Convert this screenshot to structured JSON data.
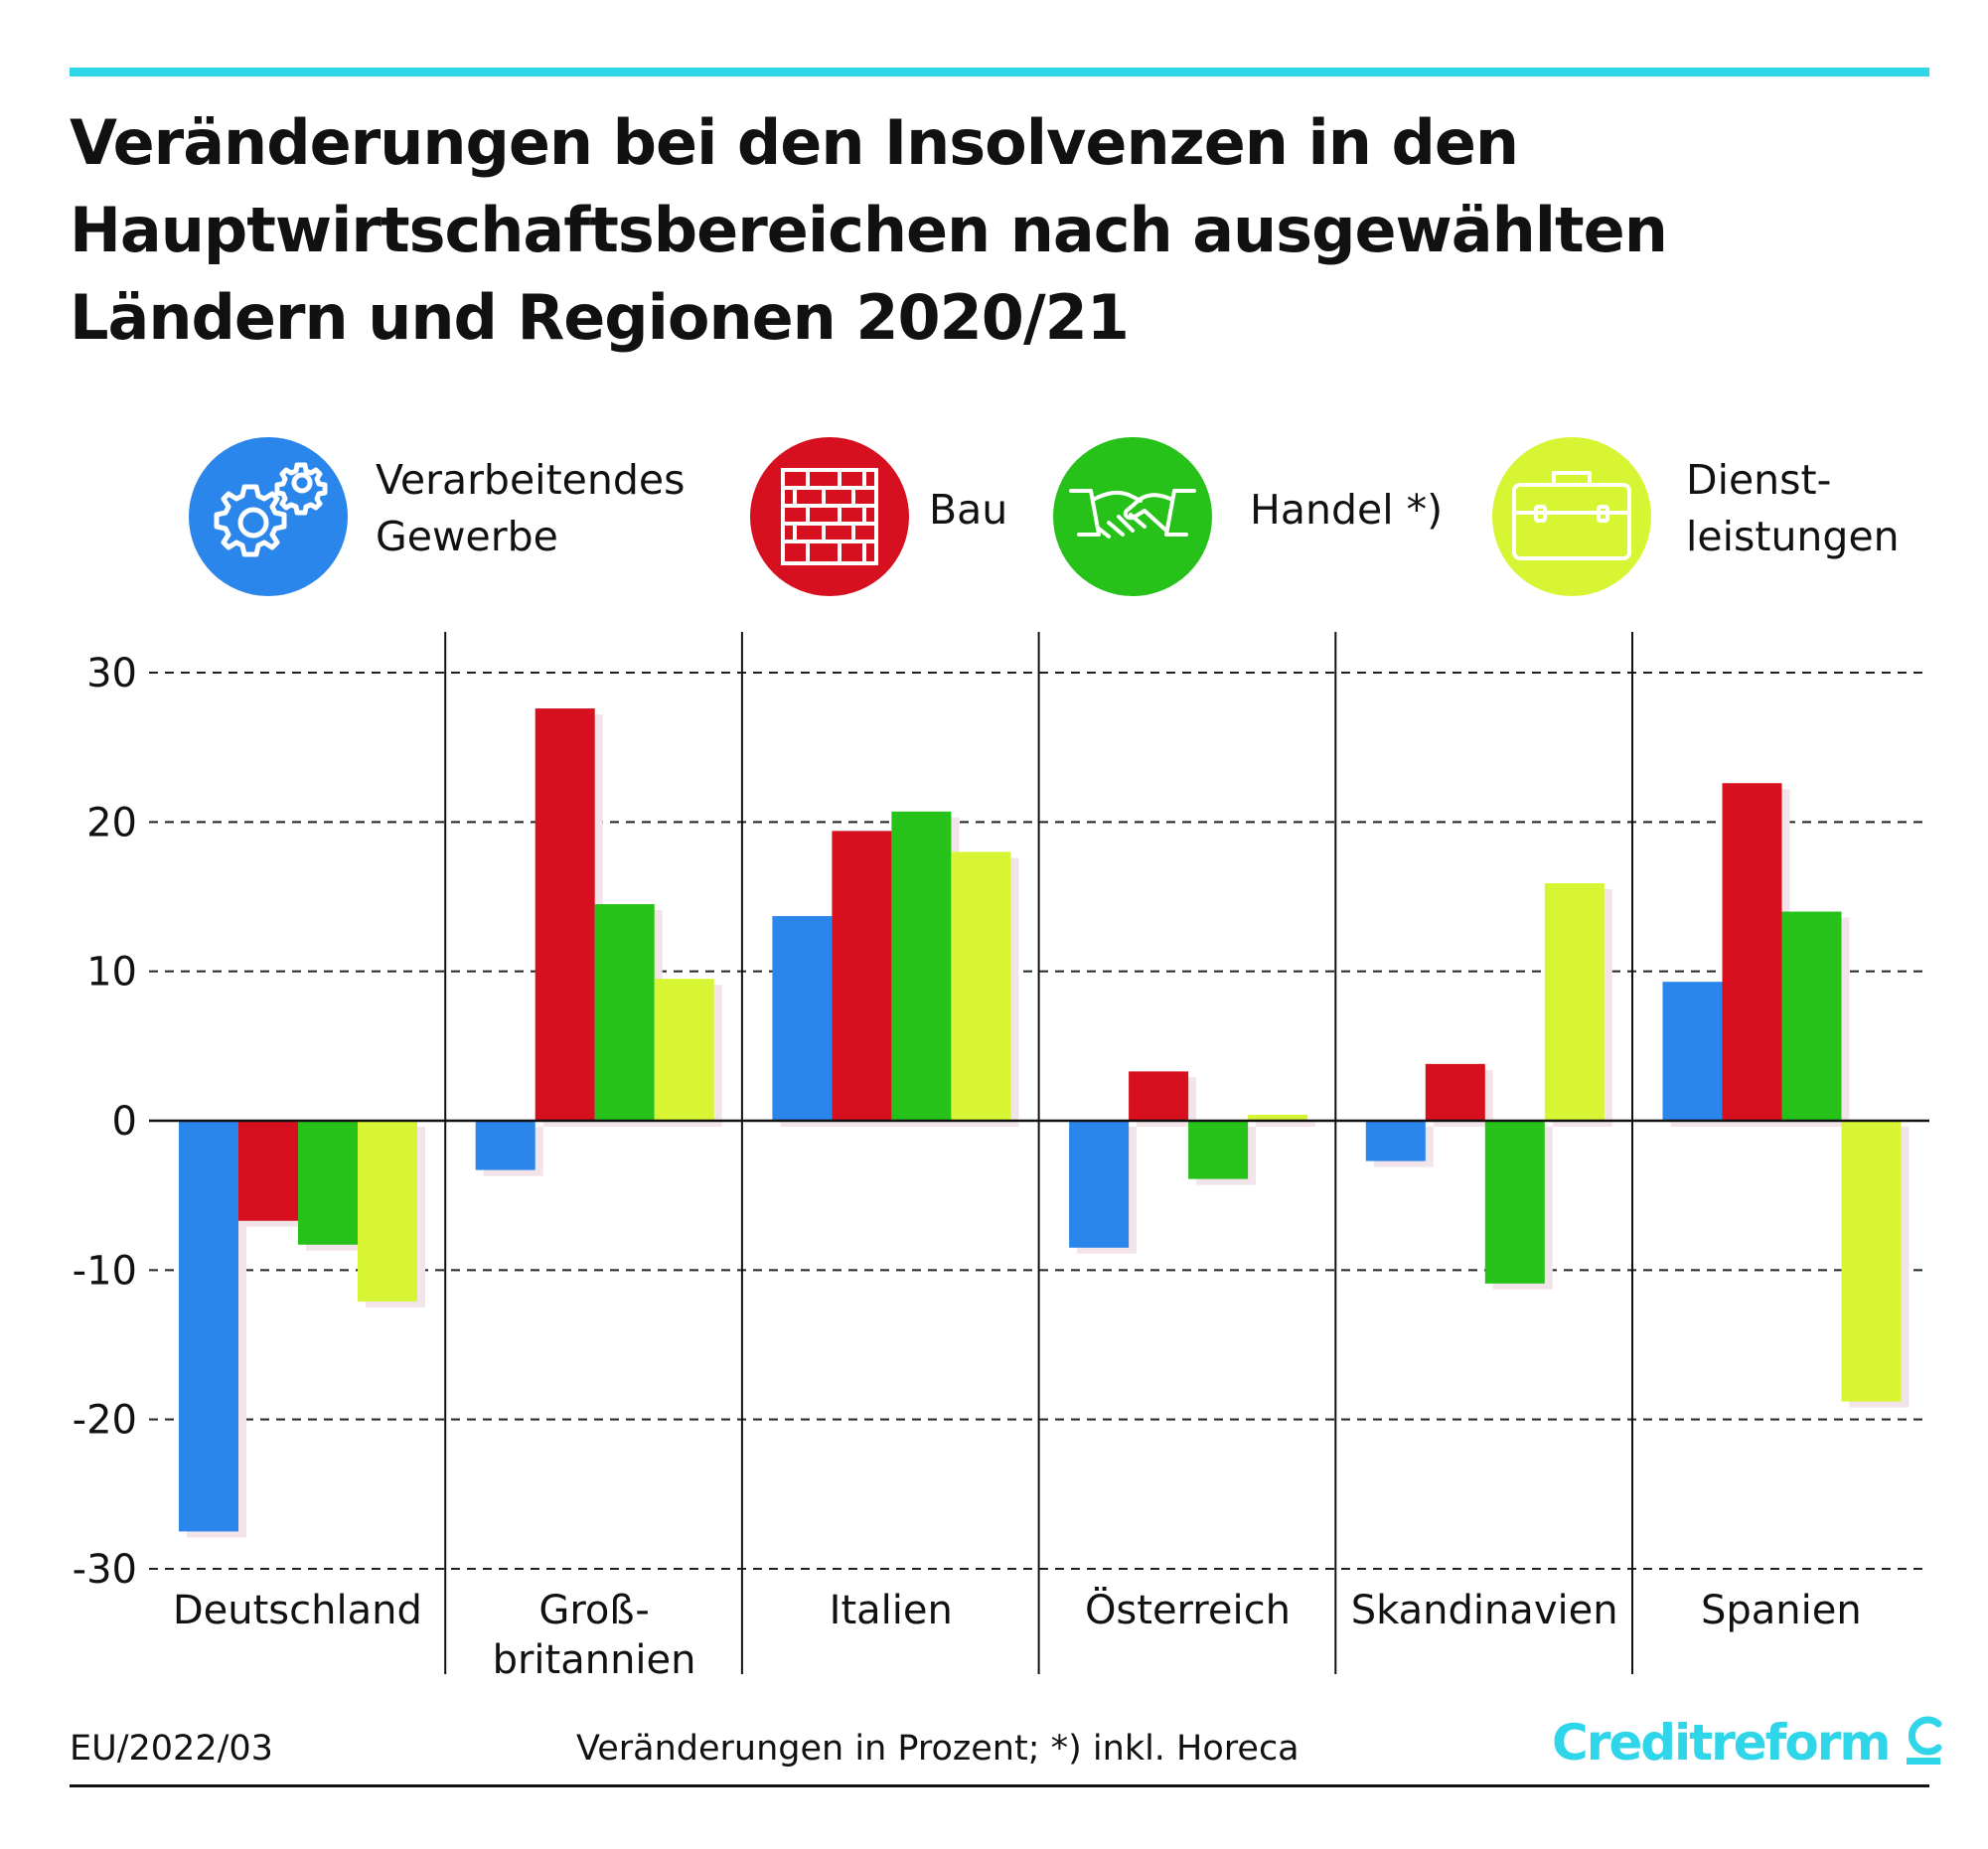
{
  "title_lines": [
    "Veränderungen bei den Insolvenzen in den",
    "Hauptwirtschaftsbereichen nach ausgewählten",
    "Ländern und Regionen 2020/21"
  ],
  "legend": [
    {
      "lines": [
        "Verarbeitendes",
        "Gewerbe"
      ],
      "icon": "gears-icon",
      "color": "#2b86ec"
    },
    {
      "lines": [
        "Bau"
      ],
      "icon": "brick-wall-icon",
      "color": "#d6101e"
    },
    {
      "lines": [
        "Handel *)"
      ],
      "icon": "handshake-icon",
      "color": "#26c21a"
    },
    {
      "lines": [
        "Dienst-",
        "leistungen"
      ],
      "icon": "briefcase-icon",
      "color": "#d8f534"
    }
  ],
  "chart_data": {
    "type": "bar",
    "title": "Veränderungen bei den Insolvenzen in den Hauptwirtschaftsbereichen nach ausgewählten Ländern und Regionen 2020/21",
    "xlabel": "",
    "ylabel": "",
    "ylim": [
      -30,
      30
    ],
    "yticks": [
      30,
      20,
      10,
      0,
      -10,
      -20,
      -30
    ],
    "ytick_labels": [
      "30",
      "20",
      "10",
      "0",
      "-10",
      "-20",
      "-30"
    ],
    "grid": true,
    "categories": [
      [
        "Deutschland"
      ],
      [
        "Groß-",
        "britannien"
      ],
      [
        "Italien"
      ],
      [
        "Österreich"
      ],
      [
        "Skandinavien"
      ],
      [
        "Spanien"
      ]
    ],
    "series": [
      {
        "name": "Verarbeitendes Gewerbe",
        "color": "#2b86ec",
        "values": [
          -27.5,
          -3.3,
          13.7,
          -8.5,
          -2.7,
          9.3
        ]
      },
      {
        "name": "Bau",
        "color": "#d6101e",
        "values": [
          -6.7,
          27.6,
          19.4,
          3.3,
          3.8,
          22.6
        ]
      },
      {
        "name": "Handel *)",
        "color": "#26c21a",
        "values": [
          -8.3,
          14.5,
          20.7,
          -3.9,
          -10.9,
          14.0
        ]
      },
      {
        "name": "Dienstleistungen",
        "color": "#d8f534",
        "values": [
          -12.1,
          9.5,
          18.0,
          0.4,
          15.9,
          -18.8
        ]
      }
    ]
  },
  "footer": {
    "source": "EU/2022/03",
    "note": "Veränderungen in Prozent; *) inkl. Horeca",
    "brand": "Creditreform"
  }
}
